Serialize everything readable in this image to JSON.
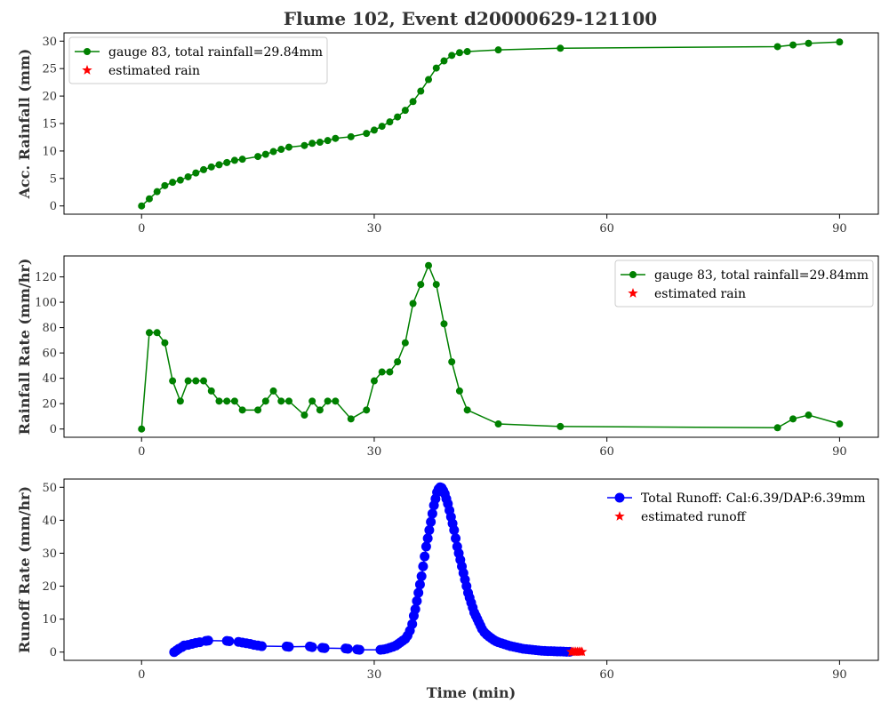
{
  "title": "Flume 102, Event d20000629-121100",
  "colors": {
    "rain": "#008000",
    "runoff": "#0000ff",
    "estimated": "#ff0000"
  },
  "chart_data": [
    {
      "type": "line",
      "ylabel": "Acc. Rainfall (mm)",
      "xlabel": "",
      "xlim": [
        -10,
        95
      ],
      "ylim": [
        -1.5,
        31.5
      ],
      "xticks": [
        0,
        30,
        60,
        90
      ],
      "yticks": [
        0,
        5,
        10,
        15,
        20,
        25,
        30
      ],
      "legend_position": "top-left",
      "series": [
        {
          "name": "gauge 83, total rainfall=29.84mm",
          "color": "#008000",
          "marker": "circle",
          "x": [
            0,
            1,
            2,
            3,
            4,
            5,
            6,
            7,
            8,
            9,
            10,
            11,
            12,
            13,
            15,
            16,
            17,
            18,
            19,
            21,
            22,
            23,
            24,
            25,
            27,
            29,
            30,
            31,
            32,
            33,
            34,
            35,
            36,
            37,
            38,
            39,
            40,
            41,
            42,
            46,
            54,
            82,
            84,
            86,
            90
          ],
          "y": [
            0,
            1.3,
            2.6,
            3.7,
            4.3,
            4.7,
            5.3,
            6.0,
            6.6,
            7.1,
            7.5,
            7.9,
            8.3,
            8.5,
            9.0,
            9.4,
            9.9,
            10.3,
            10.7,
            11.0,
            11.4,
            11.6,
            11.9,
            12.3,
            12.6,
            13.2,
            13.8,
            14.5,
            15.3,
            16.2,
            17.4,
            19.0,
            20.9,
            23.0,
            25.1,
            26.4,
            27.4,
            27.9,
            28.1,
            28.4,
            28.7,
            29.0,
            29.3,
            29.6,
            29.84
          ]
        },
        {
          "name": "estimated rain",
          "color": "#ff0000",
          "marker": "star",
          "x": [],
          "y": []
        }
      ]
    },
    {
      "type": "line",
      "ylabel": "Rainfall Rate (mm/hr)",
      "xlabel": "",
      "xlim": [
        -10,
        95
      ],
      "ylim": [
        -6.5,
        136.5
      ],
      "xticks": [
        0,
        30,
        60,
        90
      ],
      "yticks": [
        0,
        20,
        40,
        60,
        80,
        100,
        120
      ],
      "legend_position": "top-right",
      "series": [
        {
          "name": "gauge 83, total rainfall=29.84mm",
          "color": "#008000",
          "marker": "circle",
          "x": [
            0,
            1,
            2,
            3,
            4,
            5,
            6,
            7,
            8,
            9,
            10,
            11,
            12,
            13,
            15,
            16,
            17,
            18,
            19,
            21,
            22,
            23,
            24,
            25,
            27,
            29,
            30,
            31,
            32,
            33,
            34,
            35,
            36,
            37,
            38,
            39,
            40,
            41,
            42,
            46,
            54,
            82,
            84,
            86,
            90
          ],
          "y": [
            0,
            76,
            76,
            68,
            38,
            22,
            38,
            38,
            38,
            30,
            22,
            22,
            22,
            15,
            15,
            22,
            30,
            22,
            22,
            11,
            22,
            15,
            22,
            22,
            8,
            15,
            38,
            45,
            45,
            53,
            68,
            99,
            114,
            129,
            114,
            83,
            53,
            30,
            15,
            4,
            2,
            1,
            8,
            11,
            4
          ]
        },
        {
          "name": "estimated rain",
          "color": "#ff0000",
          "marker": "star",
          "x": [],
          "y": []
        }
      ]
    },
    {
      "type": "line",
      "ylabel": "Runoff Rate (mm/hr)",
      "xlabel": "Time (min)",
      "xlim": [
        -10,
        95
      ],
      "ylim": [
        -2.5,
        52.5
      ],
      "xticks": [
        0,
        30,
        60,
        90
      ],
      "yticks": [
        0,
        10,
        20,
        30,
        40,
        50
      ],
      "legend_position": "top-right",
      "legend_frame": false,
      "series": [
        {
          "name": "Total Runoff: Cal:6.39/DAP:6.39mm",
          "color": "#0000ff",
          "marker": "circle",
          "x": [
            4.2,
            4.5,
            4.8,
            5.2,
            5.5,
            6,
            6.5,
            7,
            7.5,
            8.3,
            8.6,
            11,
            11.3,
            12.5,
            13,
            13.5,
            14,
            14.5,
            15,
            15.5,
            18.7,
            19,
            21.7,
            22,
            23.3,
            23.6,
            26.3,
            26.6,
            27.8,
            28.1,
            30.8,
            31.2,
            31.6,
            32,
            32.4,
            32.8,
            33.1,
            33.4,
            33.7,
            34,
            34.3,
            34.6,
            34.9,
            35.1,
            35.3,
            35.5,
            35.7,
            35.9,
            36.1,
            36.3,
            36.5,
            36.7,
            36.9,
            37.1,
            37.3,
            37.5,
            37.7,
            37.9,
            38.1,
            38.3,
            38.5,
            38.7,
            38.9,
            39.1,
            39.3,
            39.5,
            39.7,
            39.9,
            40.1,
            40.3,
            40.5,
            40.7,
            40.9,
            41.1,
            41.3,
            41.5,
            41.7,
            41.9,
            42.1,
            42.3,
            42.5,
            42.7,
            42.9,
            43.1,
            43.3,
            43.5,
            43.7,
            43.9,
            44.2,
            44.5,
            44.8,
            45.1,
            45.4,
            45.7,
            46,
            46.4,
            46.8,
            47.2,
            47.6,
            48,
            48.4,
            48.8,
            49.2,
            49.6,
            50,
            50.4,
            50.8,
            51.2,
            51.6,
            52,
            52.4,
            52.8,
            53.2,
            53.6,
            54,
            54.4,
            54.8,
            55.2
          ],
          "y": [
            0,
            0.5,
            1,
            1.5,
            2,
            2.2,
            2.5,
            2.8,
            3,
            3.4,
            3.5,
            3.4,
            3.3,
            3.1,
            2.9,
            2.7,
            2.5,
            2.2,
            2,
            1.8,
            1.7,
            1.6,
            1.7,
            1.5,
            1.3,
            1.2,
            1.1,
            1,
            0.8,
            0.7,
            0.7,
            0.8,
            1,
            1.3,
            1.6,
            2,
            2.5,
            3,
            3.5,
            4,
            5,
            6.5,
            8.5,
            11,
            13,
            15.5,
            18,
            20.5,
            23,
            26,
            29,
            32,
            34.5,
            37,
            39.5,
            42,
            44.5,
            46.5,
            48.5,
            49.5,
            50,
            49.8,
            49,
            48,
            46.5,
            45,
            43,
            41,
            39,
            37,
            34.5,
            32,
            30,
            28,
            26,
            24,
            22,
            20,
            18,
            16.5,
            15,
            13.5,
            12,
            11,
            10,
            9,
            8,
            7,
            6,
            5.3,
            4.7,
            4.2,
            3.7,
            3.3,
            3,
            2.7,
            2.4,
            2.1,
            1.8,
            1.6,
            1.4,
            1.2,
            1,
            0.9,
            0.8,
            0.7,
            0.6,
            0.5,
            0.4,
            0.35,
            0.3,
            0.3,
            0.25,
            0.2,
            0.2,
            0.15,
            0.1,
            0.1
          ]
        },
        {
          "name": "estimated runoff",
          "color": "#ff0000",
          "marker": "star",
          "x": [
            55.4,
            55.6,
            55.8,
            56,
            56.2,
            56.4,
            56.6,
            56.8
          ],
          "y": [
            0.1,
            0.1,
            0.1,
            0.1,
            0.1,
            0.1,
            0.1,
            0.1
          ]
        }
      ]
    }
  ]
}
